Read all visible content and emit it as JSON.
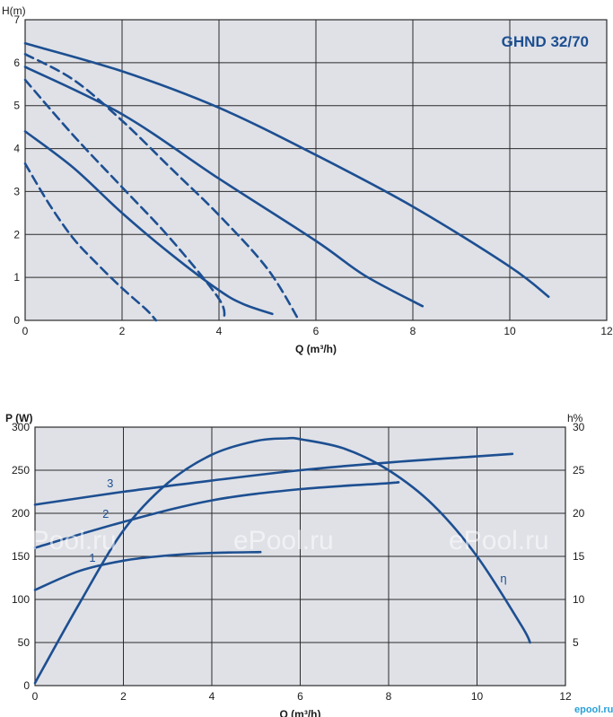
{
  "colors": {
    "plot_bg": "#dfe1e7",
    "grid": "#2b2b2b",
    "curve": "#1d4f91",
    "axis_right": "#1d4f91"
  },
  "watermark": {
    "text": "ePool.ru",
    "logo": "epool.ru"
  },
  "chart_data": [
    {
      "type": "line",
      "title": "GHND 32/70",
      "ylabel": "H(m)",
      "xlabel": "Q (m³/h)",
      "xlim": [
        0,
        12
      ],
      "ylim": [
        0,
        7
      ],
      "xticks": [
        0,
        2,
        4,
        6,
        8,
        10,
        12
      ],
      "yticks": [
        0,
        1,
        2,
        3,
        4,
        5,
        6,
        7
      ],
      "grid": true,
      "series": [
        {
          "style": "solid",
          "points": [
            [
              0,
              6.45
            ],
            [
              2,
              5.8
            ],
            [
              4,
              4.95
            ],
            [
              6,
              3.85
            ],
            [
              8,
              2.65
            ],
            [
              10,
              1.25
            ],
            [
              10.8,
              0.55
            ]
          ]
        },
        {
          "style": "solid",
          "points": [
            [
              0,
              5.9
            ],
            [
              2,
              4.8
            ],
            [
              4,
              3.3
            ],
            [
              6,
              1.85
            ],
            [
              7,
              1.05
            ],
            [
              8.2,
              0.33
            ]
          ]
        },
        {
          "style": "solid",
          "points": [
            [
              0,
              4.4
            ],
            [
              1,
              3.55
            ],
            [
              2,
              2.5
            ],
            [
              3,
              1.55
            ],
            [
              4,
              0.7
            ],
            [
              4.5,
              0.38
            ],
            [
              5.1,
              0.15
            ]
          ]
        },
        {
          "style": "dashed",
          "points": [
            [
              0,
              6.2
            ],
            [
              1,
              5.6
            ],
            [
              2,
              4.65
            ],
            [
              3,
              3.55
            ],
            [
              4,
              2.45
            ],
            [
              5,
              1.2
            ],
            [
              5.65,
              0
            ]
          ]
        },
        {
          "style": "dashed",
          "points": [
            [
              0,
              5.6
            ],
            [
              1,
              4.3
            ],
            [
              2,
              3.1
            ],
            [
              3,
              1.9
            ],
            [
              4,
              0.5
            ],
            [
              4.1,
              0
            ]
          ]
        },
        {
          "style": "dashed",
          "points": [
            [
              0,
              3.65
            ],
            [
              0.5,
              2.7
            ],
            [
              1,
              1.9
            ],
            [
              1.5,
              1.3
            ],
            [
              2,
              0.75
            ],
            [
              2.5,
              0.25
            ],
            [
              2.7,
              0
            ]
          ]
        }
      ]
    },
    {
      "type": "line",
      "ylabel": "P (W)",
      "ylabel_right": "h%",
      "xlabel": "Q (m³/h)",
      "xlim": [
        0,
        12
      ],
      "ylim": [
        0,
        300
      ],
      "ylim_right": [
        0,
        30
      ],
      "xticks": [
        0,
        2,
        4,
        6,
        8,
        10,
        12
      ],
      "yticks": [
        0,
        50,
        100,
        150,
        200,
        250,
        300
      ],
      "yticks_right": [
        5,
        10,
        15,
        20,
        25,
        30
      ],
      "grid": true,
      "series": [
        {
          "name": "3",
          "axis": "left",
          "points": [
            [
              0,
              210
            ],
            [
              2,
              225
            ],
            [
              4,
              238
            ],
            [
              6,
              250
            ],
            [
              8,
              259
            ],
            [
              10,
              266
            ],
            [
              10.8,
              269
            ]
          ]
        },
        {
          "name": "2",
          "axis": "left",
          "points": [
            [
              0,
              160
            ],
            [
              2,
              190
            ],
            [
              4,
              215
            ],
            [
              6,
              228
            ],
            [
              8,
              235
            ],
            [
              8.2,
              236
            ]
          ]
        },
        {
          "name": "1",
          "axis": "left",
          "points": [
            [
              0,
              111
            ],
            [
              1,
              133
            ],
            [
              2,
              145
            ],
            [
              3,
              151
            ],
            [
              4,
              154
            ],
            [
              5.1,
              155
            ]
          ]
        },
        {
          "name": "η",
          "axis": "right",
          "points": [
            [
              0,
              0.3
            ],
            [
              1,
              9.5
            ],
            [
              2,
              18
            ],
            [
              3,
              23.5
            ],
            [
              4,
              26.8
            ],
            [
              5,
              28.4
            ],
            [
              5.7,
              28.7
            ],
            [
              6,
              28.6
            ],
            [
              7,
              27.5
            ],
            [
              8,
              25
            ],
            [
              9,
              21
            ],
            [
              10,
              15
            ],
            [
              11,
              7
            ],
            [
              11.2,
              5
            ]
          ]
        }
      ],
      "labels": [
        {
          "text": "3",
          "at": [
            1.7,
            230
          ]
        },
        {
          "text": "2",
          "at": [
            1.6,
            195
          ]
        },
        {
          "text": "1",
          "at": [
            1.3,
            144
          ]
        },
        {
          "text": "η",
          "at": [
            10.6,
            12
          ],
          "axis": "right"
        }
      ]
    }
  ]
}
